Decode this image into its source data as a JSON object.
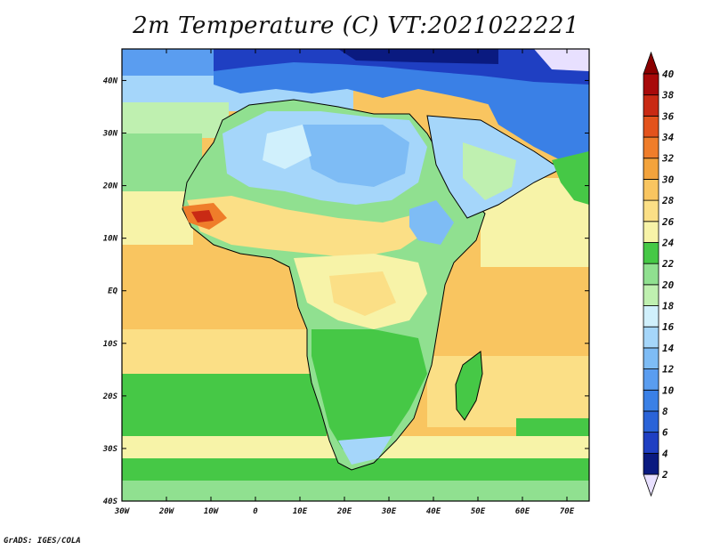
{
  "title": "2m Temperature (C) VT:2021022221",
  "credit": "GrADS: IGES/COLA",
  "map": {
    "lon_range": [
      -30,
      75
    ],
    "lat_range": [
      -40,
      46
    ],
    "lon_ticks": [
      "30W",
      "20W",
      "10W",
      "0",
      "10E",
      "20E",
      "30E",
      "40E",
      "50E",
      "60E",
      "70E"
    ],
    "lat_ticks": [
      "40S",
      "30S",
      "20S",
      "10S",
      "EQ",
      "10N",
      "20N",
      "30N",
      "40N"
    ]
  },
  "colorbar": {
    "levels": [
      "2",
      "4",
      "6",
      "8",
      "10",
      "12",
      "14",
      "16",
      "18",
      "20",
      "22",
      "24",
      "26",
      "28",
      "30",
      "32",
      "34",
      "36",
      "38",
      "40"
    ],
    "colors": [
      "#e8e0ff",
      "#0a1a80",
      "#1f3fc2",
      "#2a63d8",
      "#3a80e6",
      "#5a9df0",
      "#7ebcf5",
      "#a5d6fa",
      "#d0f0fc",
      "#bff0b0",
      "#90e090",
      "#46c846",
      "#f7f3a8",
      "#fbdf86",
      "#f9c560",
      "#f3a33c",
      "#ef7d2a",
      "#e3531c",
      "#c92a14",
      "#a80a0a",
      "#8a0000"
    ]
  }
}
